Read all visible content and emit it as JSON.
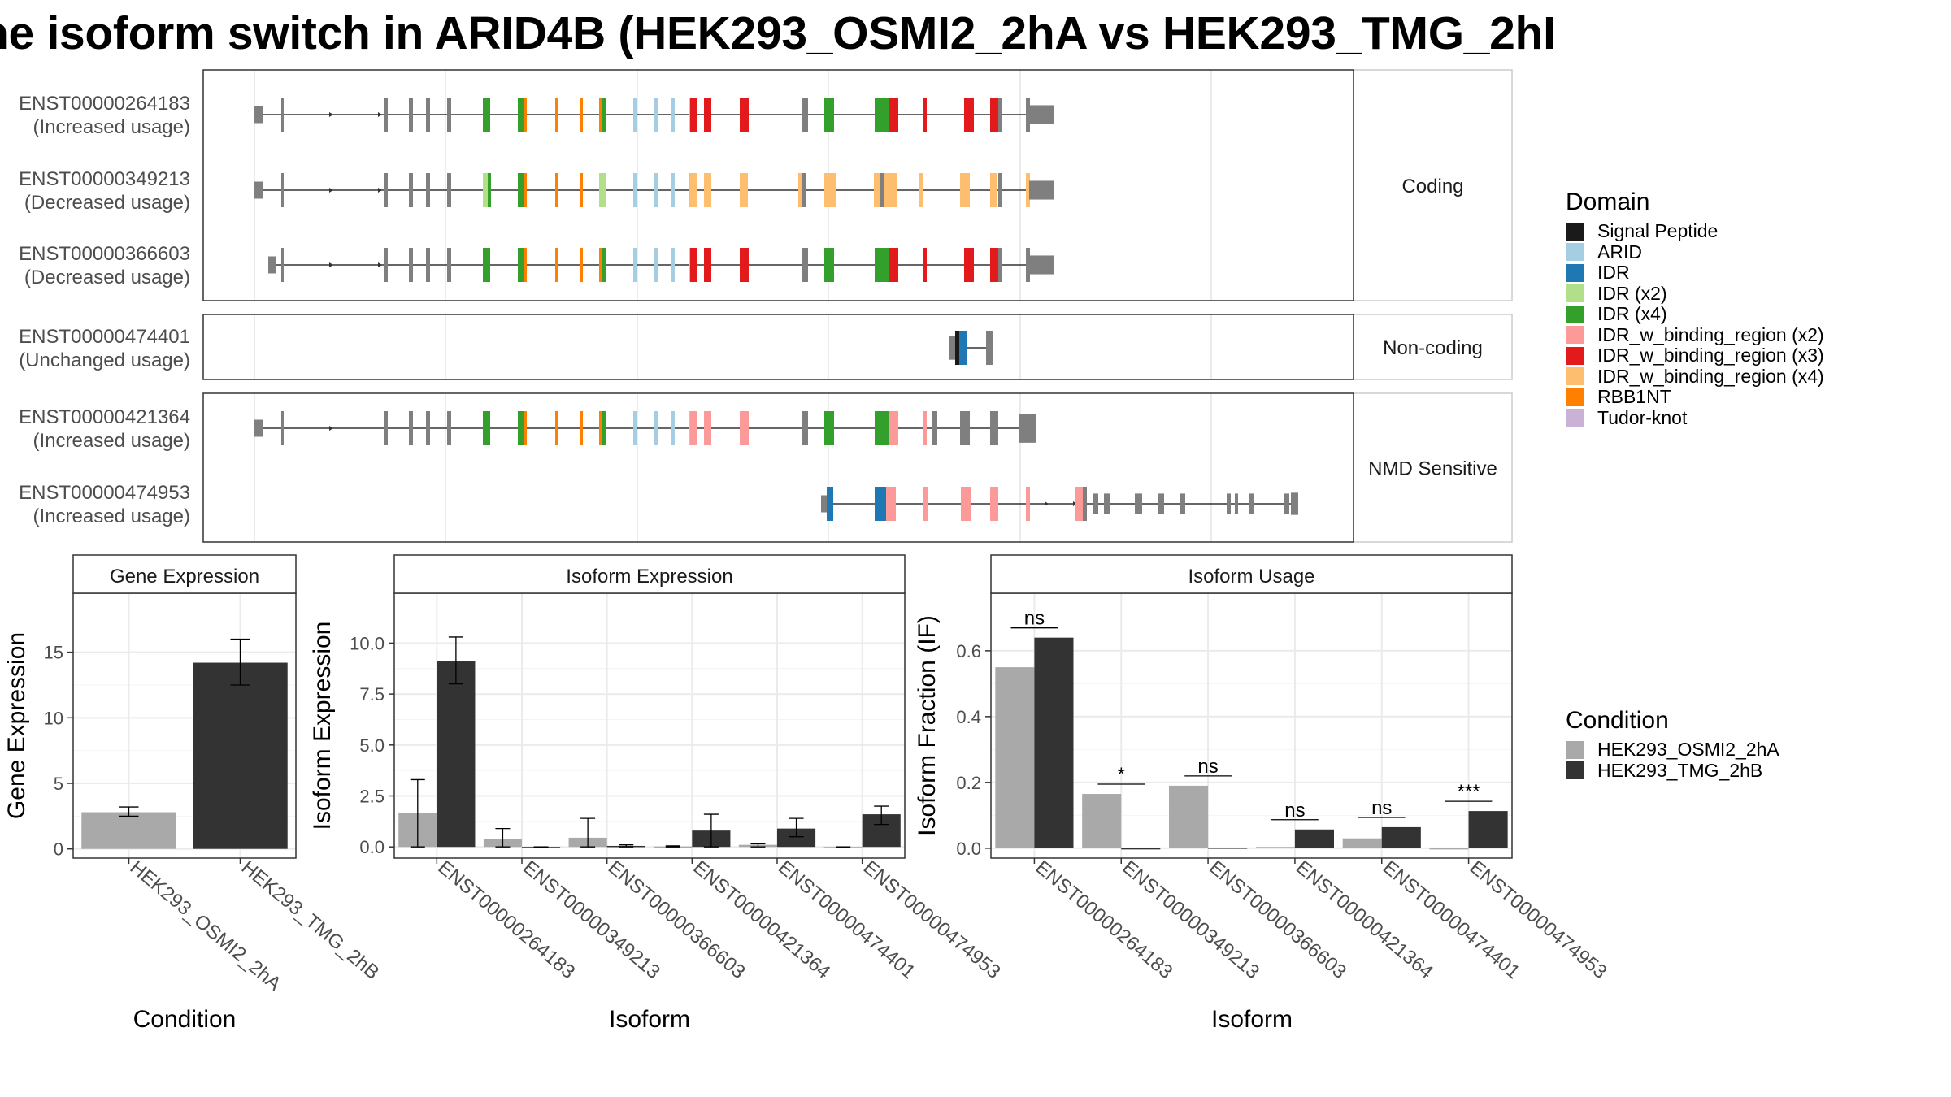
{
  "title": "ne isoform switch in ARID4B (HEK293_OSMI2_2hA vs HEK293_TMG_2hI",
  "colors": {
    "intron": "#333333",
    "exon": "#7f7f7f",
    "panel_border": "#333333",
    "strip_fill": "#ffffff",
    "grid": "#ebebeb",
    "osmi": "#a9a9a9",
    "tmg": "#333333"
  },
  "transcript_panels": [
    {
      "strip": "Coding",
      "transcripts": [
        {
          "id": "ENST00000264183",
          "usage": "(Increased usage)"
        },
        {
          "id": "ENST00000349213",
          "usage": "(Decreased usage)"
        },
        {
          "id": "ENST00000366603",
          "usage": "(Decreased usage)"
        }
      ]
    },
    {
      "strip": "Non-coding",
      "transcripts": [
        {
          "id": "ENST00000474401",
          "usage": "(Unchanged usage)"
        }
      ]
    },
    {
      "strip": "NMD Sensitive",
      "transcripts": [
        {
          "id": "ENST00000421364",
          "usage": "(Increased usage)"
        },
        {
          "id": "ENST00000474953",
          "usage": "(Increased usage)"
        }
      ]
    }
  ],
  "domain_legend": {
    "title": "Domain",
    "items": [
      {
        "label": "Signal Peptide",
        "color": "#1a1a1a"
      },
      {
        "label": "ARID",
        "color": "#a6cee3"
      },
      {
        "label": "IDR",
        "color": "#1f78b4"
      },
      {
        "label": "IDR (x2)",
        "color": "#b2df8a"
      },
      {
        "label": "IDR (x4)",
        "color": "#33a02c"
      },
      {
        "label": "IDR_w_binding_region (x2)",
        "color": "#fb9a99"
      },
      {
        "label": "IDR_w_binding_region (x3)",
        "color": "#e31a1c"
      },
      {
        "label": "IDR_w_binding_region (x4)",
        "color": "#fdbf6f"
      },
      {
        "label": "RBB1NT",
        "color": "#ff7f00"
      },
      {
        "label": "Tudor-knot",
        "color": "#cab2d6"
      }
    ]
  },
  "condition_legend": {
    "title": "Condition",
    "items": [
      {
        "label": "HEK293_OSMI2_2hA",
        "color": "#a9a9a9"
      },
      {
        "label": "HEK293_TMG_2hB",
        "color": "#333333"
      }
    ]
  },
  "chart_data": [
    {
      "type": "bar",
      "title": "Gene Expression",
      "xlabel": "Condition",
      "ylabel": "Gene Expression",
      "categories": [
        "HEK293_OSMI2_2hA",
        "HEK293_TMG_2hB"
      ],
      "values": [
        2.8,
        14.2
      ],
      "errors": [
        [
          2.5,
          3.2
        ],
        [
          12.5,
          16.0
        ]
      ],
      "ylim": [
        -0.7,
        19.5
      ],
      "yticks": [
        0,
        5,
        10,
        15
      ],
      "ytick_labels": [
        "0",
        "5",
        "10",
        "15"
      ],
      "grid": true
    },
    {
      "type": "bar",
      "title": "Isoform Expression",
      "xlabel": "Isoform",
      "ylabel": "Isoform Expression",
      "categories": [
        "ENST00000264183",
        "ENST00000349213",
        "ENST00000366603",
        "ENST00000421364",
        "ENST00000474401",
        "ENST00000474953"
      ],
      "series": [
        {
          "name": "HEK293_OSMI2_2hA",
          "values": [
            1.65,
            0.4,
            0.45,
            0.02,
            0.1,
            0.0
          ],
          "errors": [
            [
              0.0,
              3.3
            ],
            [
              0.0,
              0.9
            ],
            [
              0.0,
              1.4
            ],
            [
              0.0,
              0.05
            ],
            [
              0.0,
              0.15
            ],
            [
              0.0,
              0.0
            ]
          ]
        },
        {
          "name": "HEK293_TMG_2hB",
          "values": [
            9.1,
            0.0,
            0.05,
            0.8,
            0.9,
            1.6
          ],
          "errors": [
            [
              8.0,
              10.3
            ],
            [
              0.0,
              0.0
            ],
            [
              0.0,
              0.1
            ],
            [
              0.0,
              1.6
            ],
            [
              0.5,
              1.4
            ],
            [
              1.1,
              2.0
            ]
          ]
        }
      ],
      "ylim": [
        -0.55,
        12.45
      ],
      "yticks": [
        0,
        2.5,
        5,
        7.5,
        10
      ],
      "ytick_labels": [
        "0.0",
        "2.5",
        "5.0",
        "7.5",
        "10.0"
      ],
      "grid": true
    },
    {
      "type": "bar",
      "title": "Isoform Usage",
      "xlabel": "Isoform",
      "ylabel": "Isoform Fraction (IF)",
      "categories": [
        "ENST00000264183",
        "ENST00000349213",
        "ENST00000366603",
        "ENST00000421364",
        "ENST00000474401",
        "ENST00000474953"
      ],
      "series": [
        {
          "name": "HEK293_OSMI2_2hA",
          "values": [
            0.55,
            0.165,
            0.19,
            0.004,
            0.03,
            0.0
          ]
        },
        {
          "name": "HEK293_TMG_2hB",
          "values": [
            0.64,
            0.0,
            0.002,
            0.057,
            0.064,
            0.113
          ]
        }
      ],
      "significance": [
        "ns",
        "*",
        "ns",
        "ns",
        "ns",
        "***"
      ],
      "ylim": [
        -0.03,
        0.775
      ],
      "yticks": [
        0,
        0.2,
        0.4,
        0.6
      ],
      "ytick_labels": [
        "0.0",
        "0.2",
        "0.4",
        "0.6"
      ],
      "grid": true
    }
  ]
}
